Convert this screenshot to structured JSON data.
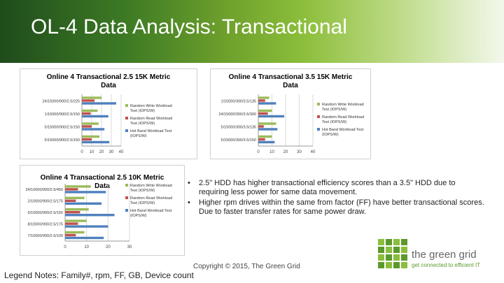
{
  "slide": {
    "title": "OL-4 Data Analysis: Transactional",
    "bullets": [
      "2.5\" HDD has higher transactional efficiency scores than a 3.5\" HDD due to requiring less power for same data movement.",
      "Higher rpm drives within the same from factor (FF) have better transactional scores. Due to faster transfer rates for same power draw."
    ],
    "bullet_symbol": "•",
    "copyright": "Copyright © 2015, The Green Grid",
    "legend_notes": "Legend Notes: Family#, rpm, FF, GB, Device count",
    "logo": {
      "name": "the green grid",
      "tagline": "get connected to efficient IT"
    }
  },
  "colors": {
    "series_write": "#9bbb59",
    "series_read": "#c0504d",
    "series_hot": "#4f81bd"
  },
  "chart_data": [
    {
      "type": "bar",
      "orientation": "horizontal",
      "title_lines": [
        "Online 4 Transactional 2.5 15K Metric",
        "Data"
      ],
      "categories": [
        "24/15000/900/2.5/225",
        "1/15000/900/2.5/150",
        "5/15000/900/2.5/150",
        "5/15000/900/2.5/150"
      ],
      "series": [
        {
          "name": "Random Write Workload Test (IOPS/W)",
          "values": [
            20,
            16,
            17,
            18
          ]
        },
        {
          "name": "Random Read Workload Test (IOPS/W)",
          "values": [
            13,
            9,
            10,
            10
          ]
        },
        {
          "name": "Hot Band Workload Test (IOPS/W)",
          "values": [
            35,
            27,
            23,
            28
          ]
        }
      ],
      "xticks": [
        "0",
        "10",
        "20",
        "30",
        "40"
      ],
      "xlim": [
        0,
        40
      ]
    },
    {
      "type": "bar",
      "orientation": "horizontal",
      "title_lines": [
        "Online 4 Transactional 3.5 15K Metric",
        "Data"
      ],
      "categories": [
        "1/15000/300/3.5/135",
        "24/15000/300/3.5/300",
        "5/15000/300/3.5/135",
        "5/15000/300/3.5/150"
      ],
      "series": [
        {
          "name": "Random Write Workload Test (IOPS/W)",
          "values": [
            8,
            10,
            13,
            10
          ]
        },
        {
          "name": "Random Read Workload Test (IOPS/W)",
          "values": [
            5,
            7,
            4,
            5
          ]
        },
        {
          "name": "Hot Band Workload Test (IOPS/W)",
          "values": [
            13,
            19,
            14,
            12
          ]
        }
      ],
      "xticks": [
        "0",
        "10",
        "20",
        "30",
        "40"
      ],
      "xlim": [
        0,
        40
      ]
    },
    {
      "type": "bar",
      "orientation": "horizontal",
      "title_lines": [
        "Online 4 Transactional 2.5 10K Metric",
        "Data"
      ],
      "categories": [
        "24/10000/900/2.5/450",
        "2/10000/900/2.5/175",
        "5/10000/900/2.5/150",
        "8/10000/900/2.5/175",
        "7/10000/900/2.5/105"
      ],
      "series": [
        {
          "name": "Random Write Workload Test (IOPS/W)",
          "values": [
            12,
            9,
            11,
            10,
            9
          ]
        },
        {
          "name": "Random Read Workload Test (IOPS/W)",
          "values": [
            6,
            5,
            7,
            6,
            5
          ]
        },
        {
          "name": "Hot Band Workload Test (IOPS/W)",
          "values": [
            19,
            17,
            23,
            20,
            18
          ]
        }
      ],
      "xticks": [
        "0",
        "10",
        "20",
        "30"
      ],
      "xlim": [
        0,
        30
      ]
    }
  ]
}
